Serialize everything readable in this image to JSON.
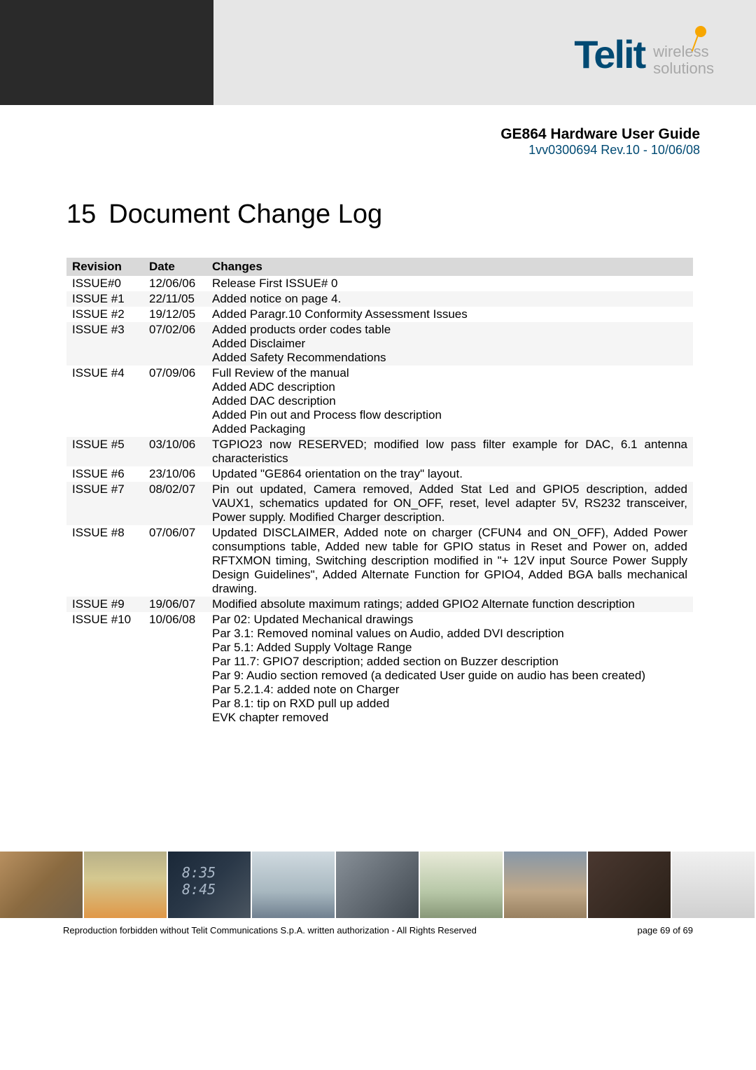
{
  "header": {
    "logo_main": "Telit",
    "logo_sub1": "wireless",
    "logo_sub2": "solutions",
    "doc_title": "GE864 Hardware User Guide",
    "doc_rev": "1vv0300694 Rev.10 - 10/06/08"
  },
  "section": {
    "number": "15",
    "title": "Document Change Log"
  },
  "table": {
    "headers": {
      "revision": "Revision",
      "date": "Date",
      "changes": "Changes"
    },
    "rows": [
      {
        "rev": "ISSUE#0",
        "date": "12/06/06",
        "changes": "Release First ISSUE# 0"
      },
      {
        "rev": "ISSUE #1",
        "date": "22/11/05",
        "changes": "Added notice on page 4."
      },
      {
        "rev": "ISSUE #2",
        "date": "19/12/05",
        "changes": "Added Paragr.10 Conformity Assessment Issues"
      },
      {
        "rev": "ISSUE #3",
        "date": "07/02/06",
        "changes": "Added products order codes table\nAdded Disclaimer\nAdded Safety Recommendations"
      },
      {
        "rev": "ISSUE #4",
        "date": "07/09/06",
        "changes": "Full Review of the manual\nAdded ADC description\nAdded DAC description\nAdded Pin out and Process flow description\nAdded Packaging"
      },
      {
        "rev": "ISSUE #5",
        "date": "03/10/06",
        "changes": "TGPIO23 now RESERVED; modified low pass filter example for DAC, 6.1 antenna characteristics"
      },
      {
        "rev": "ISSUE #6",
        "date": "23/10/06",
        "changes": "Updated \"GE864 orientation on the tray\" layout."
      },
      {
        "rev": "ISSUE #7",
        "date": "08/02/07",
        "changes": "Pin out updated, Camera removed, Added Stat Led and GPIO5 description, added VAUX1, schematics updated for ON_OFF, reset, level adapter 5V, RS232 transceiver, Power supply. Modified Charger description."
      },
      {
        "rev": "ISSUE #8",
        "date": "07/06/07",
        "changes": "Updated DISCLAIMER, Added note on charger (CFUN4 and ON_OFF), Added Power consumptions table, Added new table for GPIO status in Reset and Power on, added RFTXMON timing, Switching description modified in \"+ 12V input Source Power Supply Design Guidelines\", Added Alternate Function for GPIO4, Added BGA balls mechanical drawing."
      },
      {
        "rev": "ISSUE #9",
        "date": "19/06/07",
        "changes": "Modified absolute maximum ratings; added GPIO2 Alternate function description"
      },
      {
        "rev": "ISSUE #10",
        "date": "10/06/08",
        "changes": "Par 02: Updated Mechanical drawings\nPar 3.1: Removed nominal values on Audio, added DVI description\nPar 5.1: Added Supply Voltage Range\nPar 11.7: GPIO7 description; added section on Buzzer description\nPar 9: Audio section removed (a dedicated User guide on audio has been created)\nPar 5.2.1.4: added note on Charger\nPar 8.1: tip on RXD pull up added\nEVK chapter removed"
      }
    ]
  },
  "footer": {
    "copyright": "Reproduction forbidden without Telit Communications S.p.A. written authorization - All Rights Reserved",
    "page": "page 69 of 69"
  }
}
